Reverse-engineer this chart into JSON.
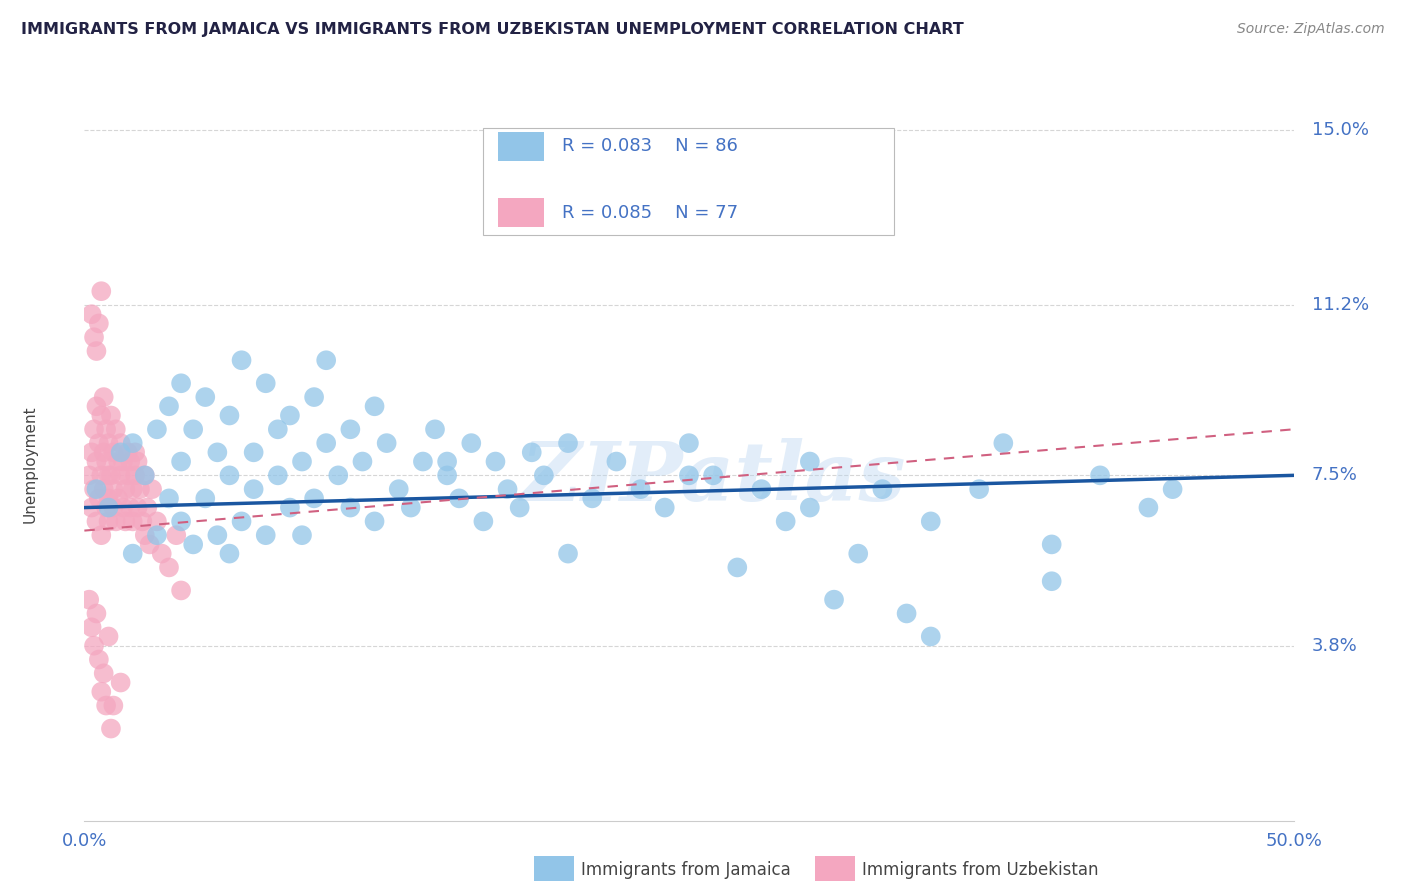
{
  "title": "IMMIGRANTS FROM JAMAICA VS IMMIGRANTS FROM UZBEKISTAN UNEMPLOYMENT CORRELATION CHART",
  "source": "Source: ZipAtlas.com",
  "ylabel": "Unemployment",
  "xlim": [
    0.0,
    0.5
  ],
  "ylim": [
    0.0,
    0.155
  ],
  "yticks_right": [
    0.038,
    0.075,
    0.112,
    0.15
  ],
  "ytick_labels_right": [
    "3.8%",
    "7.5%",
    "11.2%",
    "15.0%"
  ],
  "jamaica_color": "#92C5E8",
  "uzbekistan_color": "#F4A7C0",
  "jamaica_line_color": "#1A56A0",
  "uzbekistan_line_color": "#D06080",
  "watermark": "ZIPatlas",
  "legend_jamaica_r": "R = 0.083",
  "legend_jamaica_n": "N = 86",
  "legend_uzbekistan_r": "R = 0.085",
  "legend_uzbekistan_n": "N = 77",
  "legend_label_jamaica": "Immigrants from Jamaica",
  "legend_label_uzbekistan": "Immigrants from Uzbekistan",
  "background_color": "#FFFFFF",
  "grid_color": "#CCCCCC",
  "title_color": "#222244",
  "axis_label_color": "#444444",
  "tick_label_color": "#4472C4",
  "jamaica_line_start_y": 0.068,
  "jamaica_line_end_y": 0.075,
  "uzbekistan_line_start_y": 0.063,
  "uzbekistan_line_end_y": 0.085,
  "jamaica_x": [
    0.005,
    0.01,
    0.015,
    0.02,
    0.02,
    0.025,
    0.03,
    0.03,
    0.035,
    0.035,
    0.04,
    0.04,
    0.04,
    0.045,
    0.045,
    0.05,
    0.05,
    0.055,
    0.055,
    0.06,
    0.06,
    0.06,
    0.065,
    0.065,
    0.07,
    0.07,
    0.075,
    0.075,
    0.08,
    0.08,
    0.085,
    0.085,
    0.09,
    0.09,
    0.095,
    0.095,
    0.1,
    0.1,
    0.105,
    0.11,
    0.11,
    0.115,
    0.12,
    0.12,
    0.125,
    0.13,
    0.135,
    0.14,
    0.145,
    0.15,
    0.155,
    0.16,
    0.165,
    0.17,
    0.175,
    0.18,
    0.185,
    0.19,
    0.2,
    0.21,
    0.22,
    0.23,
    0.24,
    0.25,
    0.26,
    0.27,
    0.28,
    0.29,
    0.3,
    0.31,
    0.32,
    0.33,
    0.34,
    0.35,
    0.37,
    0.38,
    0.4,
    0.42,
    0.44,
    0.45,
    0.15,
    0.2,
    0.25,
    0.3,
    0.35,
    0.4
  ],
  "jamaica_y": [
    0.072,
    0.068,
    0.08,
    0.082,
    0.058,
    0.075,
    0.085,
    0.062,
    0.09,
    0.07,
    0.065,
    0.078,
    0.095,
    0.06,
    0.085,
    0.07,
    0.092,
    0.062,
    0.08,
    0.075,
    0.088,
    0.058,
    0.1,
    0.065,
    0.08,
    0.072,
    0.095,
    0.062,
    0.085,
    0.075,
    0.068,
    0.088,
    0.078,
    0.062,
    0.092,
    0.07,
    0.082,
    0.1,
    0.075,
    0.085,
    0.068,
    0.078,
    0.09,
    0.065,
    0.082,
    0.072,
    0.068,
    0.078,
    0.085,
    0.075,
    0.07,
    0.082,
    0.065,
    0.078,
    0.072,
    0.068,
    0.08,
    0.075,
    0.082,
    0.07,
    0.078,
    0.072,
    0.068,
    0.082,
    0.075,
    0.055,
    0.072,
    0.065,
    0.078,
    0.048,
    0.058,
    0.072,
    0.045,
    0.065,
    0.072,
    0.082,
    0.052,
    0.075,
    0.068,
    0.072,
    0.078,
    0.058,
    0.075,
    0.068,
    0.04,
    0.06
  ],
  "uzbekistan_x": [
    0.002,
    0.003,
    0.003,
    0.004,
    0.004,
    0.005,
    0.005,
    0.005,
    0.006,
    0.006,
    0.007,
    0.007,
    0.007,
    0.008,
    0.008,
    0.008,
    0.009,
    0.009,
    0.009,
    0.01,
    0.01,
    0.01,
    0.01,
    0.011,
    0.011,
    0.012,
    0.012,
    0.012,
    0.013,
    0.013,
    0.014,
    0.014,
    0.015,
    0.015,
    0.016,
    0.016,
    0.017,
    0.017,
    0.018,
    0.018,
    0.019,
    0.019,
    0.02,
    0.02,
    0.021,
    0.021,
    0.022,
    0.022,
    0.023,
    0.024,
    0.025,
    0.025,
    0.026,
    0.027,
    0.028,
    0.03,
    0.032,
    0.035,
    0.038,
    0.04,
    0.002,
    0.003,
    0.004,
    0.005,
    0.006,
    0.007,
    0.008,
    0.009,
    0.01,
    0.011,
    0.003,
    0.004,
    0.005,
    0.006,
    0.007,
    0.012,
    0.015
  ],
  "uzbekistan_y": [
    0.075,
    0.068,
    0.08,
    0.072,
    0.085,
    0.065,
    0.078,
    0.09,
    0.07,
    0.082,
    0.075,
    0.088,
    0.062,
    0.08,
    0.072,
    0.092,
    0.068,
    0.078,
    0.085,
    0.075,
    0.065,
    0.082,
    0.07,
    0.088,
    0.075,
    0.068,
    0.08,
    0.072,
    0.085,
    0.065,
    0.078,
    0.07,
    0.075,
    0.082,
    0.068,
    0.078,
    0.072,
    0.065,
    0.08,
    0.075,
    0.068,
    0.078,
    0.072,
    0.065,
    0.08,
    0.075,
    0.068,
    0.078,
    0.072,
    0.065,
    0.075,
    0.062,
    0.068,
    0.06,
    0.072,
    0.065,
    0.058,
    0.055,
    0.062,
    0.05,
    0.048,
    0.042,
    0.038,
    0.045,
    0.035,
    0.028,
    0.032,
    0.025,
    0.04,
    0.02,
    0.11,
    0.105,
    0.102,
    0.108,
    0.115,
    0.025,
    0.03
  ]
}
